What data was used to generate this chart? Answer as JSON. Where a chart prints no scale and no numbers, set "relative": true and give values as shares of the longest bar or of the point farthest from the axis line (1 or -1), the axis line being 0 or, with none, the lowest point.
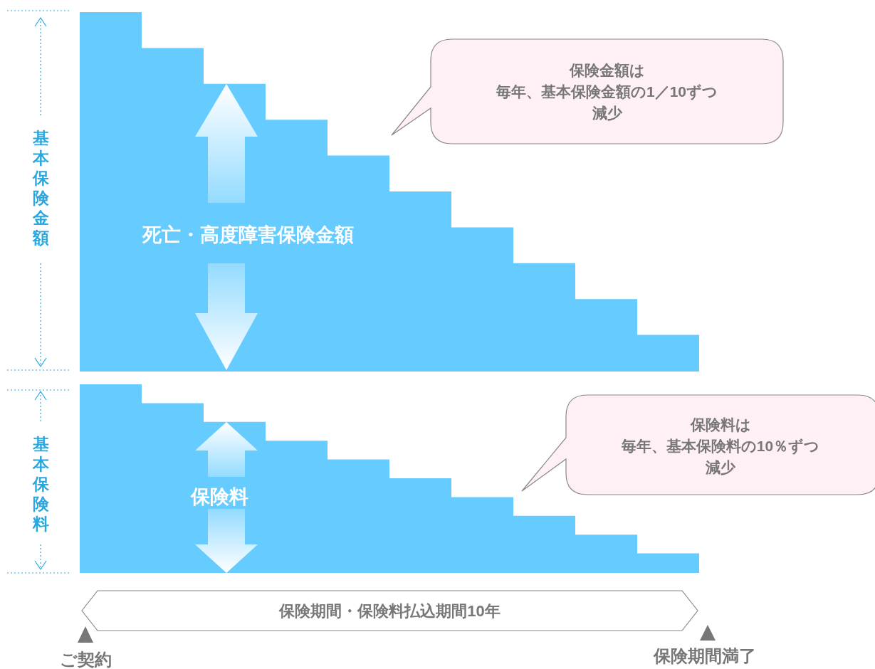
{
  "chart_data": [
    {
      "type": "bar",
      "relative": true,
      "ylabel": "基本保険金額",
      "categories": [
        null,
        null,
        null,
        null,
        null,
        null,
        null,
        null,
        null,
        null
      ],
      "values": [
        1,
        0.9,
        0.8,
        0.7,
        0.6,
        0.5,
        0.4,
        0.3,
        0.2,
        0.1
      ],
      "color": "#66ccff",
      "annotations": [
        "死亡・高度障害保険金額",
        "保険金額は",
        "毎年、基本保険金額の1／10ずつ",
        "減少"
      ]
    },
    {
      "type": "bar",
      "relative": true,
      "ylabel": "基本保険料",
      "categories": [
        null,
        null,
        null,
        null,
        null,
        null,
        null,
        null,
        null,
        null
      ],
      "values": [
        1,
        0.9,
        0.8,
        0.7,
        0.6,
        0.5,
        0.4,
        0.3,
        0.2,
        0.1
      ],
      "color": "#66ccff",
      "annotations": [
        "保険料",
        "保険料は",
        "毎年、基本保険料の10％ずつ",
        "減少",
        "保険期間・保険料払込期間10年",
        "ご契約",
        "保険期間満了"
      ]
    }
  ]
}
